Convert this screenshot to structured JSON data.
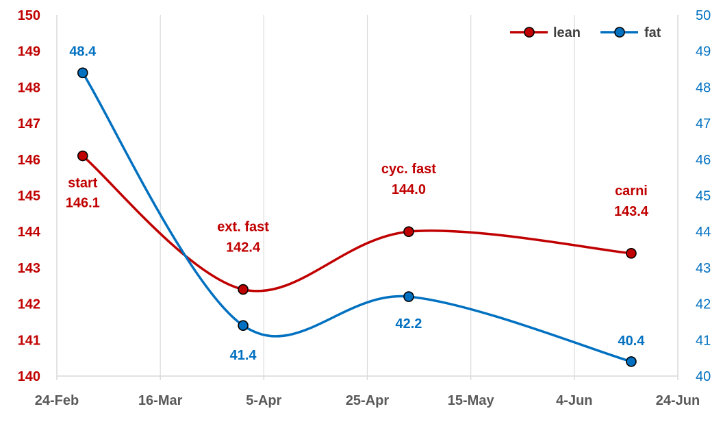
{
  "chart_data": {
    "type": "line",
    "x_ticks": [
      "24-Feb",
      "16-Mar",
      "5-Apr",
      "25-Apr",
      "15-May",
      "4-Jun",
      "24-Jun"
    ],
    "x_tick_dates": [
      "2023-02-24",
      "2023-03-16",
      "2023-04-05",
      "2023-04-25",
      "2023-05-15",
      "2023-06-04",
      "2023-06-24"
    ],
    "xlim": [
      "2023-02-24",
      "2023-06-24"
    ],
    "y_left": {
      "ylim": [
        140,
        150
      ],
      "ticks": [
        140,
        141,
        142,
        143,
        144,
        145,
        146,
        147,
        148,
        149,
        150
      ],
      "color": "#C00000"
    },
    "y_right": {
      "ylim": [
        40,
        50
      ],
      "ticks": [
        40,
        41,
        42,
        43,
        44,
        45,
        46,
        47,
        48,
        49,
        50
      ],
      "color": "#0070C0"
    },
    "grid": "vertical",
    "legend_position": "top-right",
    "series": [
      {
        "name": "lean",
        "axis": "left",
        "color": "#C00000",
        "x": [
          "2023-03-01",
          "2023-04-01",
          "2023-05-03",
          "2023-06-15"
        ],
        "values": [
          146.1,
          142.4,
          144.0,
          143.4
        ],
        "labels": [
          "146.1",
          "142.4",
          "144.0",
          "143.4"
        ],
        "annotations": [
          "start",
          "ext. fast",
          "cyc. fast",
          "carni"
        ]
      },
      {
        "name": "fat",
        "axis": "right",
        "color": "#0070C0",
        "x": [
          "2023-03-01",
          "2023-04-01",
          "2023-05-03",
          "2023-06-15"
        ],
        "values": [
          48.4,
          41.4,
          42.2,
          40.4
        ],
        "labels": [
          "48.4",
          "41.4",
          "42.2",
          "40.4"
        ]
      }
    ]
  }
}
